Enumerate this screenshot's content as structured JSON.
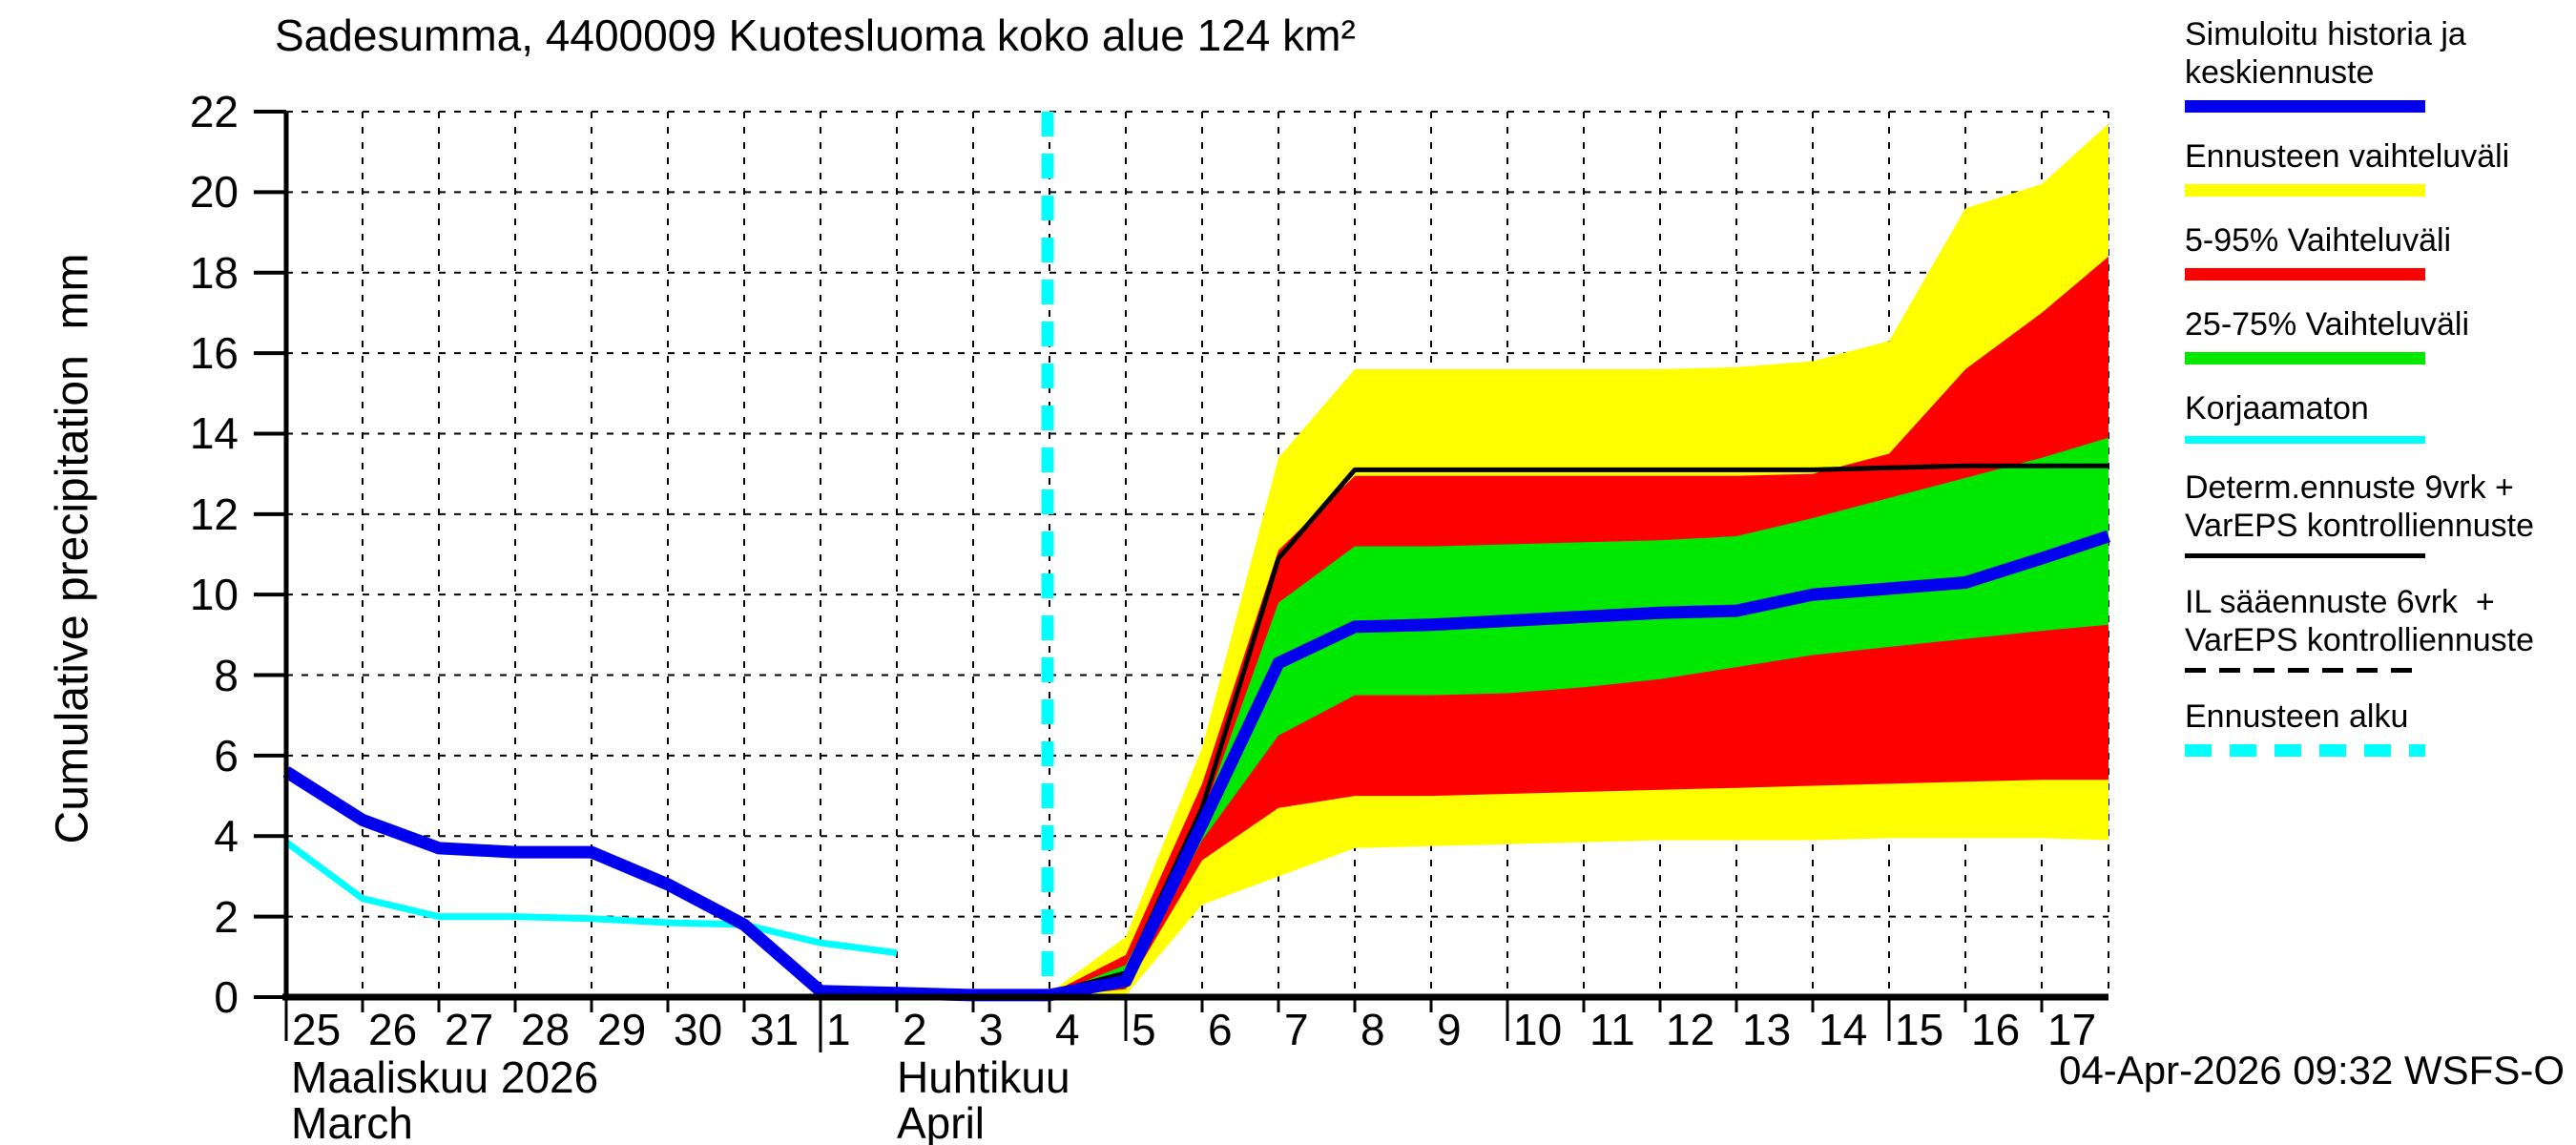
{
  "title": {
    "text": "Sadesumma, 4400009 Kuotesluoma koko alue 124 km²"
  },
  "footer": {
    "timestamp": "04-Apr-2026 09:32 WSFS-O"
  },
  "axes": {
    "y": {
      "label": "Cumulative precipitation  mm",
      "ticks": [
        0,
        2,
        4,
        6,
        8,
        10,
        12,
        14,
        16,
        18,
        20,
        22
      ]
    },
    "x": {
      "march": {
        "name_fi": "Maaliskuu 2026",
        "name_en": "March",
        "days": [
          25,
          26,
          27,
          28,
          29,
          30,
          31
        ]
      },
      "april": {
        "name_fi": "Huhtikuu",
        "name_en": "April",
        "days": [
          1,
          2,
          3,
          4,
          5,
          6,
          7,
          8,
          9,
          10,
          11,
          12,
          13,
          14,
          15,
          16,
          17
        ]
      }
    }
  },
  "legend": {
    "items": [
      {
        "label_lines": [
          "Simuloitu historia ja",
          "keskiennuste"
        ],
        "icon": "blue-line",
        "color": "#0000ee",
        "style": "solid",
        "thickness": 13
      },
      {
        "label_lines": [
          "Ennusteen vaihteluväli"
        ],
        "icon": "yellow-band",
        "color": "#ffff00",
        "style": "solid",
        "thickness": 13
      },
      {
        "label_lines": [
          "5-95% Vaihteluväli"
        ],
        "icon": "red-band",
        "color": "#ff0000",
        "style": "solid",
        "thickness": 13
      },
      {
        "label_lines": [
          "25-75% Vaihteluväli"
        ],
        "icon": "green-band",
        "color": "#00e800",
        "style": "solid",
        "thickness": 13
      },
      {
        "label_lines": [
          "Korjaamaton"
        ],
        "icon": "cyan-line",
        "color": "#00ffff",
        "style": "solid",
        "thickness": 8
      },
      {
        "label_lines": [
          "Determ.ennuste 9vrk +",
          "VarEPS kontrolliennuste"
        ],
        "icon": "black-line",
        "color": "#000000",
        "style": "solid",
        "thickness": 5
      },
      {
        "label_lines": [
          "IL sääennuste 6vrk  +",
          "VarEPS kontrolliennuste"
        ],
        "icon": "black-dashed-line",
        "color": "#000000",
        "style": "dashed",
        "thickness": 5
      },
      {
        "label_lines": [
          "Ennusteen alku"
        ],
        "icon": "cyan-dashed-line",
        "color": "#00ffff",
        "style": "dashed",
        "thickness": 13
      }
    ]
  },
  "chart_data": {
    "type": "area",
    "title": "Sadesumma, 4400009 Kuotesluoma koko alue 124 km²",
    "ylabel": "Cumulative precipitation (mm)",
    "ylim": [
      0,
      22
    ],
    "grid": true,
    "x_unit": "days from 2026-03-25 (0 = Mar 25, 7 = Apr 1, 23 = Apr 17)",
    "x_range_days": [
      0,
      23.875
    ],
    "forecast_start_day": 9.975,
    "colors": {
      "history_mean": "#0000ee",
      "uncorrected": "#00ffff",
      "deterministic": "#000000",
      "full_range": "#ffff00",
      "p5_95": "#ff0000",
      "p25_75": "#00e800",
      "forecast_start": "#00ffff"
    },
    "series": [
      {
        "name": "Simuloitu historia ja keskiennuste",
        "color": "#0000ee",
        "x": [
          0,
          1,
          2,
          3,
          4,
          5,
          6,
          7,
          8,
          9,
          10,
          11,
          12,
          13,
          14,
          15,
          16,
          17,
          18,
          19,
          20,
          21,
          22,
          23,
          23.875
        ],
        "values": [
          5.6,
          4.4,
          3.7,
          3.6,
          3.6,
          2.8,
          1.8,
          0.15,
          0.1,
          0.05,
          0.05,
          0.4,
          4.3,
          8.3,
          9.2,
          9.25,
          9.35,
          9.45,
          9.55,
          9.6,
          10.0,
          10.15,
          10.3,
          10.9,
          11.45
        ]
      },
      {
        "name": "Korjaamaton",
        "color": "#00ffff",
        "x": [
          0,
          1,
          2,
          3,
          4,
          5,
          6,
          7,
          8
        ],
        "values": [
          3.85,
          2.45,
          2.0,
          2.0,
          1.95,
          1.85,
          1.8,
          1.35,
          1.1
        ]
      },
      {
        "name": "Determ.ennuste 9vrk + VarEPS kontrolliennuste",
        "color": "#000000",
        "x": [
          10,
          11,
          12,
          13,
          14,
          15,
          16,
          17,
          18,
          19,
          20,
          21,
          22,
          23,
          23.875
        ],
        "values": [
          0.1,
          0.6,
          4.7,
          10.9,
          13.1,
          13.1,
          13.1,
          13.1,
          13.1,
          13.1,
          13.1,
          13.15,
          13.2,
          13.2,
          13.2
        ]
      }
    ],
    "bands": [
      {
        "name": "Ennusteen vaihteluväli",
        "color": "#ffff00",
        "x": [
          10,
          11,
          12,
          13,
          14,
          15,
          16,
          17,
          18,
          19,
          20,
          21,
          22,
          23,
          23.875
        ],
        "upper": [
          0.1,
          1.5,
          6.2,
          13.4,
          15.6,
          15.6,
          15.6,
          15.6,
          15.6,
          15.65,
          15.8,
          16.3,
          19.6,
          20.2,
          21.7
        ],
        "lower": [
          0.0,
          0.05,
          2.3,
          3.0,
          3.7,
          3.75,
          3.8,
          3.85,
          3.9,
          3.9,
          3.9,
          3.95,
          3.95,
          3.95,
          3.9
        ]
      },
      {
        "name": "5-95% Vaihteluväli",
        "color": "#ff0000",
        "x": [
          10,
          11,
          12,
          13,
          14,
          15,
          16,
          17,
          18,
          19,
          20,
          21,
          22,
          23,
          23.875
        ],
        "upper": [
          0.08,
          1.05,
          5.3,
          11.1,
          12.95,
          12.95,
          12.95,
          12.95,
          12.95,
          12.95,
          13.0,
          13.5,
          15.6,
          17.0,
          18.4
        ],
        "lower": [
          0.0,
          0.2,
          3.4,
          4.7,
          5.0,
          5.0,
          5.05,
          5.1,
          5.15,
          5.2,
          5.25,
          5.3,
          5.35,
          5.4,
          5.4
        ]
      },
      {
        "name": "25-75% Vaihteluväli",
        "color": "#00e800",
        "x": [
          10,
          11,
          12,
          13,
          14,
          15,
          16,
          17,
          18,
          19,
          20,
          21,
          22,
          23,
          23.875
        ],
        "upper": [
          0.05,
          0.8,
          4.5,
          9.8,
          11.2,
          11.2,
          11.25,
          11.3,
          11.35,
          11.45,
          11.9,
          12.4,
          12.9,
          13.4,
          13.9
        ],
        "lower": [
          0.0,
          0.3,
          3.9,
          6.5,
          7.5,
          7.5,
          7.55,
          7.7,
          7.9,
          8.2,
          8.5,
          8.7,
          8.9,
          9.1,
          9.25
        ]
      }
    ]
  }
}
